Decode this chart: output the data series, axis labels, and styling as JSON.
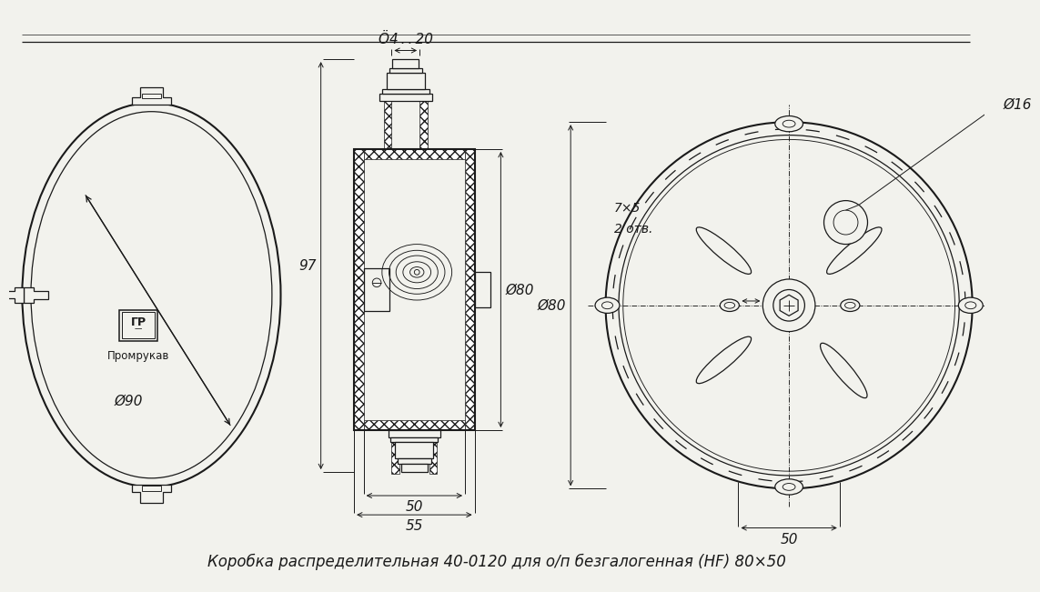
{
  "title": "Коробка распределительная 40-0120 для о/п безгалогенная (HF) 80×50",
  "bg_color": "#f2f2ed",
  "line_color": "#1a1a1a",
  "logo_label": "Промрукав",
  "d90": "Ø90",
  "d80": "Ø80",
  "d16": "Ø16",
  "d4_20": "Ö4 . . 20",
  "dim_97": "97",
  "dim_50a": "50",
  "dim_55": "55",
  "dim_50b": "50",
  "dim_7x5": "7×5",
  "dim_2otv": "2 отв.",
  "font_size": 11
}
